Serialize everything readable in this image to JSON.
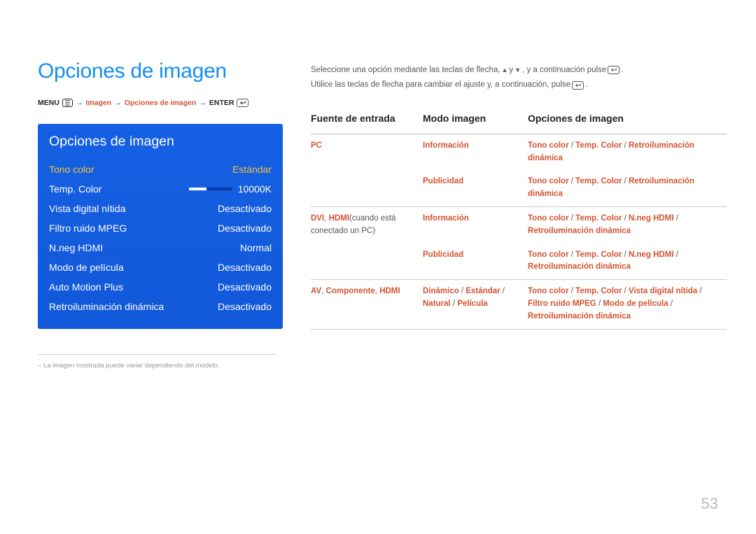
{
  "page_title": "Opciones de imagen",
  "breadcrumb": {
    "menu": "MENU",
    "path1": "Imagen",
    "path2": "Opciones de imagen",
    "enter": "ENTER",
    "arrow": "→"
  },
  "menu": {
    "title": "Opciones de imagen",
    "rows": [
      {
        "label": "Tono color",
        "value": "Estándar",
        "selected": true
      },
      {
        "label": "Temp. Color",
        "value": "10000K",
        "slider": true
      },
      {
        "label": "Vista digital nítida",
        "value": "Desactivado"
      },
      {
        "label": "Filtro ruido MPEG",
        "value": "Desactivado"
      },
      {
        "label": "N.neg HDMI",
        "value": "Normal"
      },
      {
        "label": "Modo de película",
        "value": "Desactivado"
      },
      {
        "label": "Auto Motion Plus",
        "value": "Desactivado"
      },
      {
        "label": "Retroiluminación dinámica",
        "value": "Desactivado"
      }
    ]
  },
  "footnote": "– La imagen mostrada puede variar dependiendo del modelo.",
  "instructions": {
    "line1a": "Seleccione una opción mediante las teclas de flecha, ",
    "line1b": " y ",
    "line1c": ", y a continuación pulse ",
    "line1d": ".",
    "line2a": "Utilice las teclas de flecha para cambiar el ajuste y, a continuación, pulse ",
    "line2b": "."
  },
  "table": {
    "headers": {
      "col1": "Fuente de entrada",
      "col2": "Modo imagen",
      "col3": "Opciones de imagen"
    },
    "rows": [
      {
        "source_html": "<span>PC</span>",
        "mode_html": "<span>Información</span>",
        "opts_html": "<span class='red'>Tono color</span><span class='slash'> / </span><span class='red'>Temp. Color</span><span class='slash'> / </span><span class='red'>Retroiluminación dinámica</span>",
        "sep": false
      },
      {
        "source_html": "",
        "mode_html": "<span>Publicidad</span>",
        "opts_html": "<span class='red'>Tono color</span><span class='slash'> / </span><span class='red'>Temp. Color</span><span class='slash'> / </span><span class='red'>Retroiluminación dinámica</span>",
        "sep": true
      },
      {
        "source_html": "<span>DVI</span><span class='sub'>, </span><span>HDMI</span><span class='sub'>(cuando está conectado un PC)</span>",
        "mode_html": "<span>Información</span>",
        "opts_html": "<span class='red'>Tono color</span><span class='slash'> / </span><span class='red'>Temp. Color</span><span class='slash'> / </span><span class='red'>N.neg HDMI</span><span class='slash'> / </span><span class='red'>Retroiluminación dinámica</span>",
        "sep": false
      },
      {
        "source_html": "",
        "mode_html": "<span>Publicidad</span>",
        "opts_html": "<span class='red'>Tono color</span><span class='slash'> / </span><span class='red'>Temp. Color</span><span class='slash'> / </span><span class='red'>N.neg HDMI</span><span class='slash'> / </span><span class='red'>Retroiluminación dinámica</span>",
        "sep": true
      },
      {
        "source_html": "<span>AV</span><span class='sub'>, </span><span>Componente</span><span class='sub'>, </span><span>HDMI</span>",
        "mode_html": "<span>Dinámico</span><span class='slash'> / </span><span>Estándar</span><span class='slash'> / </span><span>Natural</span><span class='slash'> / </span><span>Película</span>",
        "opts_html": "<span class='red'>Tono color</span><span class='slash'> / </span><span class='red'>Temp. Color</span><span class='slash'> / </span><span class='red'>Vista digital nítida</span><span class='slash'> / </span><span class='red'>Filtro ruido MPEG</span><span class='slash'> / </span><span class='red'>Modo de película</span><span class='slash'> / </span><span class='red'>Retroiluminación dinámica</span>",
        "sep": true
      }
    ]
  },
  "page_number": "53",
  "colors": {
    "title_blue": "#128ef4",
    "menu_bg": "#1560e3",
    "highlight_yellow": "#f5c33b",
    "accent_red": "#d35230",
    "page_num_gray": "#bbbbbb"
  }
}
